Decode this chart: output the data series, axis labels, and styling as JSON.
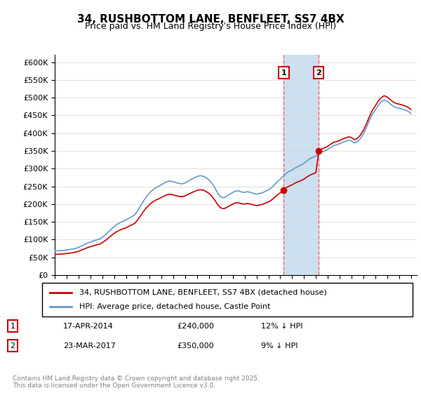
{
  "title": "34, RUSHBOTTOM LANE, BENFLEET, SS7 4BX",
  "subtitle": "Price paid vs. HM Land Registry's House Price Index (HPI)",
  "legend_line1": "34, RUSHBOTTOM LANE, BENFLEET, SS7 4BX (detached house)",
  "legend_line2": "HPI: Average price, detached house, Castle Point",
  "annotation1_label": "1",
  "annotation1_date": "17-APR-2014",
  "annotation1_price": 240000,
  "annotation1_text": "17-APR-2014     £240,000     12% ↓ HPI",
  "annotation2_label": "2",
  "annotation2_date": "23-MAR-2017",
  "annotation2_price": 350000,
  "annotation2_text": "23-MAR-2017     £350,000     9% ↓ HPI",
  "line_color_red": "#cc0000",
  "line_color_blue": "#6699cc",
  "shaded_color": "#cce0f0",
  "vline_color": "#ff6666",
  "annotation_box_color": "#cc0000",
  "ylabel": "",
  "ylim_min": 0,
  "ylim_max": 620000,
  "yticks": [
    0,
    50000,
    100000,
    150000,
    200000,
    250000,
    300000,
    350000,
    400000,
    450000,
    500000,
    550000,
    600000
  ],
  "year_start": 1995,
  "year_end": 2026,
  "copyright_text": "Contains HM Land Registry data © Crown copyright and database right 2025.\nThis data is licensed under the Open Government Licence v3.0.",
  "hpi_data": {
    "years": [
      1995.0,
      1995.25,
      1995.5,
      1995.75,
      1996.0,
      1996.25,
      1996.5,
      1996.75,
      1997.0,
      1997.25,
      1997.5,
      1997.75,
      1998.0,
      1998.25,
      1998.5,
      1998.75,
      1999.0,
      1999.25,
      1999.5,
      1999.75,
      2000.0,
      2000.25,
      2000.5,
      2000.75,
      2001.0,
      2001.25,
      2001.5,
      2001.75,
      2002.0,
      2002.25,
      2002.5,
      2002.75,
      2003.0,
      2003.25,
      2003.5,
      2003.75,
      2004.0,
      2004.25,
      2004.5,
      2004.75,
      2005.0,
      2005.25,
      2005.5,
      2005.75,
      2006.0,
      2006.25,
      2006.5,
      2006.75,
      2007.0,
      2007.25,
      2007.5,
      2007.75,
      2008.0,
      2008.25,
      2008.5,
      2008.75,
      2009.0,
      2009.25,
      2009.5,
      2009.75,
      2010.0,
      2010.25,
      2010.5,
      2010.75,
      2011.0,
      2011.25,
      2011.5,
      2011.75,
      2012.0,
      2012.25,
      2012.5,
      2012.75,
      2013.0,
      2013.25,
      2013.5,
      2013.75,
      2014.0,
      2014.25,
      2014.5,
      2014.75,
      2015.0,
      2015.25,
      2015.5,
      2015.75,
      2016.0,
      2016.25,
      2016.5,
      2016.75,
      2017.0,
      2017.25,
      2017.5,
      2017.75,
      2018.0,
      2018.25,
      2018.5,
      2018.75,
      2019.0,
      2019.25,
      2019.5,
      2019.75,
      2020.0,
      2020.25,
      2020.5,
      2020.75,
      2021.0,
      2021.25,
      2021.5,
      2021.75,
      2022.0,
      2022.25,
      2022.5,
      2022.75,
      2023.0,
      2023.25,
      2023.5,
      2023.75,
      2024.0,
      2024.25,
      2024.5,
      2024.75,
      2025.0
    ],
    "values": [
      68000,
      68500,
      69000,
      69500,
      71000,
      72000,
      73500,
      75000,
      78000,
      82000,
      86000,
      90000,
      93000,
      96000,
      99000,
      101000,
      106000,
      113000,
      121000,
      129000,
      137000,
      143000,
      148000,
      152000,
      155000,
      160000,
      165000,
      170000,
      182000,
      196000,
      210000,
      222000,
      232000,
      240000,
      246000,
      250000,
      255000,
      260000,
      264000,
      265000,
      263000,
      260000,
      258000,
      257000,
      260000,
      265000,
      270000,
      274000,
      278000,
      280000,
      279000,
      274000,
      268000,
      258000,
      245000,
      230000,
      220000,
      218000,
      222000,
      228000,
      233000,
      237000,
      237000,
      234000,
      233000,
      235000,
      233000,
      230000,
      228000,
      230000,
      232000,
      236000,
      240000,
      246000,
      254000,
      263000,
      270000,
      278000,
      287000,
      292000,
      296000,
      302000,
      306000,
      310000,
      315000,
      322000,
      328000,
      332000,
      336000,
      342000,
      347000,
      350000,
      354000,
      360000,
      365000,
      367000,
      370000,
      374000,
      377000,
      380000,
      378000,
      372000,
      376000,
      385000,
      398000,
      415000,
      435000,
      452000,
      465000,
      478000,
      488000,
      493000,
      490000,
      483000,
      476000,
      472000,
      470000,
      468000,
      465000,
      462000,
      455000
    ]
  },
  "sale_data": {
    "dates": [
      2014.29,
      2017.23
    ],
    "prices": [
      240000,
      350000
    ]
  }
}
